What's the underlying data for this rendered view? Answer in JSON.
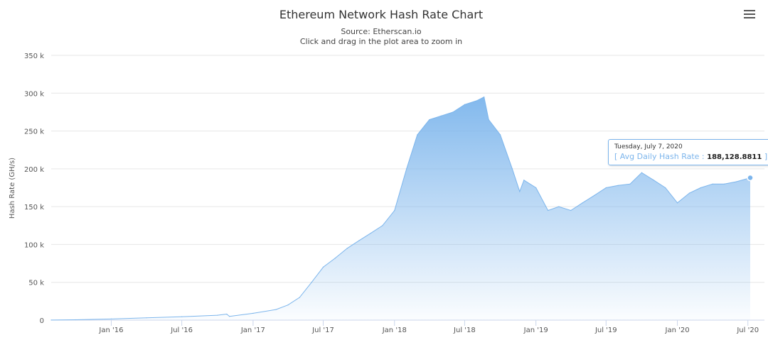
{
  "chart_data": {
    "type": "area",
    "title": "Ethereum Network Hash Rate Chart",
    "subtitle": "Source: Etherscan.io",
    "subtitle2": "Click and drag in the plot area to zoom in",
    "ylabel": "Hash Rate (GH/s)",
    "ylim": [
      0,
      350000
    ],
    "yticks": [
      0,
      50000,
      100000,
      150000,
      200000,
      250000,
      300000,
      350000
    ],
    "ytick_labels": [
      "0",
      "50 k",
      "100 k",
      "150 k",
      "200 k",
      "250 k",
      "300 k",
      "350 k"
    ],
    "xlim": [
      "2015-07-30",
      "2020-07-07"
    ],
    "xticks": [
      "2016-01-01",
      "2016-07-01",
      "2017-01-01",
      "2017-07-01",
      "2018-01-01",
      "2018-07-01",
      "2019-01-01",
      "2019-07-01",
      "2020-01-01",
      "2020-07-01"
    ],
    "xtick_labels": [
      "Jan '16",
      "Jul '16",
      "Jan '17",
      "Jul '17",
      "Jan '18",
      "Jul '18",
      "Jan '19",
      "Jul '19",
      "Jan '20",
      "Jul '20"
    ],
    "grid": "horizontal",
    "color": "#7cb5ec",
    "series": [
      {
        "name": "Avg Daily Hash Rate",
        "x": [
          "2015-07-30",
          "2015-10-01",
          "2016-01-01",
          "2016-04-01",
          "2016-07-01",
          "2016-10-01",
          "2016-10-25",
          "2016-11-01",
          "2017-01-01",
          "2017-03-01",
          "2017-04-01",
          "2017-05-01",
          "2017-06-01",
          "2017-07-01",
          "2017-08-01",
          "2017-09-01",
          "2017-10-01",
          "2017-11-01",
          "2017-12-01",
          "2018-01-01",
          "2018-02-01",
          "2018-03-01",
          "2018-04-01",
          "2018-05-01",
          "2018-06-01",
          "2018-07-01",
          "2018-08-01",
          "2018-08-20",
          "2018-09-01",
          "2018-10-01",
          "2018-11-01",
          "2018-11-20",
          "2018-12-01",
          "2019-01-01",
          "2019-02-01",
          "2019-03-01",
          "2019-04-01",
          "2019-05-01",
          "2019-06-01",
          "2019-07-01",
          "2019-08-01",
          "2019-09-01",
          "2019-10-01",
          "2019-11-01",
          "2019-12-01",
          "2020-01-01",
          "2020-02-01",
          "2020-03-01",
          "2020-04-01",
          "2020-05-01",
          "2020-06-01",
          "2020-07-07"
        ],
        "y": [
          100,
          500,
          1500,
          3000,
          4500,
          6500,
          8000,
          5000,
          9000,
          14000,
          20000,
          30000,
          50000,
          70000,
          82000,
          95000,
          105000,
          115000,
          125000,
          145000,
          200000,
          245000,
          265000,
          270000,
          275000,
          285000,
          290000,
          295000,
          265000,
          245000,
          200000,
          170000,
          185000,
          175000,
          145000,
          150000,
          145000,
          155000,
          165000,
          175000,
          178000,
          180000,
          195000,
          185000,
          175000,
          155000,
          168000,
          175000,
          180000,
          180000,
          183000,
          188128.8811
        ]
      }
    ],
    "tooltip": {
      "date": "Tuesday, July 7, 2020",
      "series_label": "Avg Daily Hash Rate",
      "value": "188,128.8811"
    }
  },
  "menu_icon": "hamburger-menu-icon"
}
